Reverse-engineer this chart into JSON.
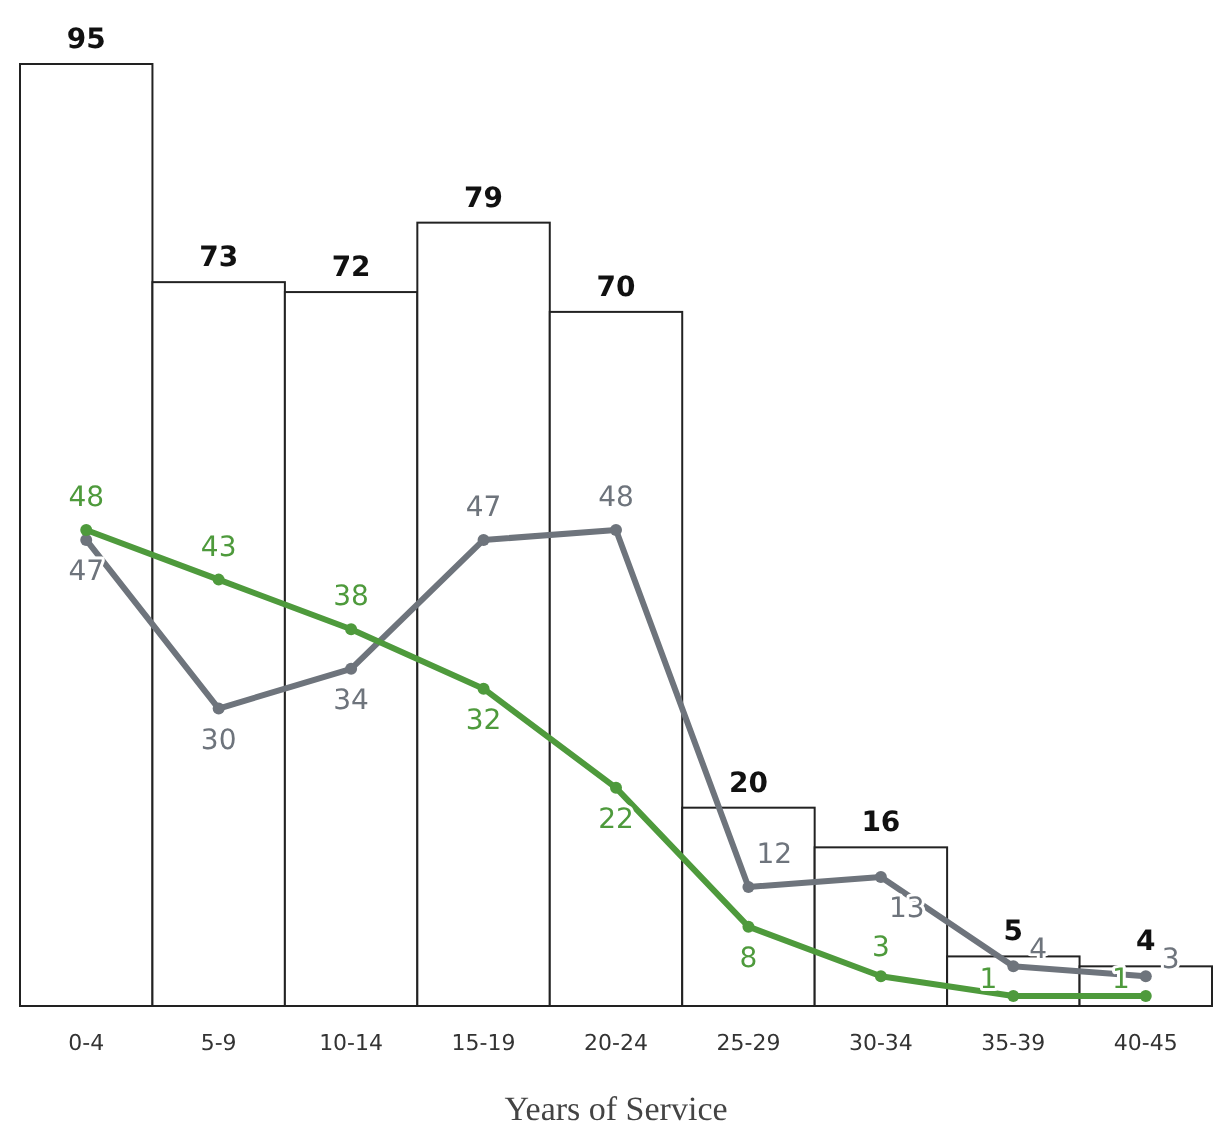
{
  "chart_data": {
    "type": "bar",
    "xlabel": "Years of Service",
    "categories": [
      "0-4",
      "5-9",
      "10-14",
      "15-19",
      "20-24",
      "25-29",
      "30-34",
      "35-39",
      "40-45"
    ],
    "ylim": [
      0,
      95
    ],
    "data_labels": true,
    "series": [
      {
        "color": "#ffffff",
        "values": [
          95,
          73,
          72,
          79,
          70,
          20,
          16,
          5,
          4
        ]
      },
      {
        "type": "line",
        "color": "#6e747c",
        "marker": "circle",
        "values": [
          47,
          30,
          34,
          47,
          48,
          12,
          13,
          4,
          3
        ]
      },
      {
        "type": "line",
        "color": "#4e9a3c",
        "marker": "circle",
        "values": [
          48,
          43,
          38,
          32,
          22,
          8,
          3,
          1,
          1
        ]
      }
    ]
  }
}
